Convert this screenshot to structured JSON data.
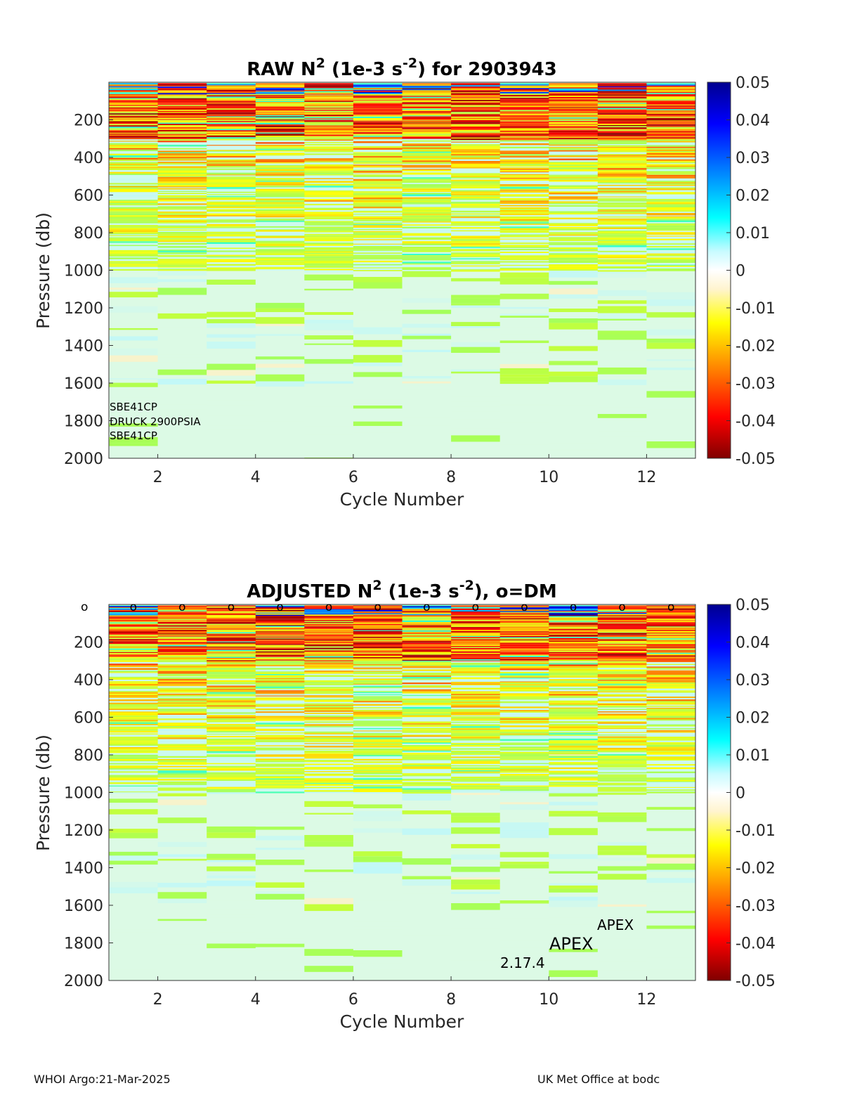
{
  "chart_data": [
    {
      "type": "heatmap",
      "title_main": "RAW N",
      "title_sup1": "2",
      "title_mid": " (1e-3 s",
      "title_sup2": "-2",
      "title_end": ") for 2903943",
      "xlabel": "Cycle Number",
      "ylabel": "Pressure (db)",
      "x_ticks": [
        2,
        4,
        6,
        8,
        10,
        12
      ],
      "y_ticks": [
        200,
        400,
        600,
        800,
        1000,
        1200,
        1400,
        1600,
        1800,
        2000
      ],
      "xlim": [
        1,
        13
      ],
      "ylim": [
        0,
        2000
      ],
      "y_reversed": true,
      "cycles": [
        1,
        2,
        3,
        4,
        5,
        6,
        7,
        8,
        9,
        10,
        11,
        12
      ],
      "colorbar": {
        "ticks": [
          "0.05",
          "0.04",
          "0.03",
          "0.02",
          "0.01",
          "0",
          "-0.01",
          "-0.02",
          "-0.03",
          "-0.04",
          "-0.05"
        ],
        "range": [
          -0.05,
          0.05
        ],
        "colormap": "jet"
      },
      "annotations": [
        "SBE41CP",
        "DRUCK 2900PSIA",
        "SBE41CP"
      ]
    },
    {
      "type": "heatmap",
      "title_main": "ADJUSTED N",
      "title_sup1": "2",
      "title_mid": " (1e-3 s",
      "title_sup2": "-2",
      "title_end": "), o=DM",
      "xlabel": "Cycle Number",
      "ylabel": "Pressure (db)",
      "x_ticks": [
        2,
        4,
        6,
        8,
        10,
        12
      ],
      "y_ticks": [
        200,
        400,
        600,
        800,
        1000,
        1200,
        1400,
        1600,
        1800,
        2000
      ],
      "xlim": [
        1,
        13
      ],
      "ylim": [
        0,
        2000
      ],
      "y_reversed": true,
      "cycles": [
        1,
        2,
        3,
        4,
        5,
        6,
        7,
        8,
        9,
        10,
        11,
        12
      ],
      "dm_marker": "o",
      "dm_cycles": [
        1,
        2,
        3,
        4,
        5,
        6,
        7,
        8,
        9,
        10,
        11,
        12,
        13
      ],
      "colorbar": {
        "ticks": [
          "0.05",
          "0.04",
          "0.03",
          "0.02",
          "0.01",
          "0",
          "-0.01",
          "-0.02",
          "-0.03",
          "-0.04",
          "-0.05"
        ],
        "range": [
          -0.05,
          0.05
        ],
        "colormap": "jet"
      },
      "annotations": [
        "APEX",
        "APEX",
        "2.17.4"
      ]
    }
  ],
  "footer": {
    "left": "WHOI Argo:21-Mar-2025",
    "right": "UK Met Office at bodc"
  }
}
